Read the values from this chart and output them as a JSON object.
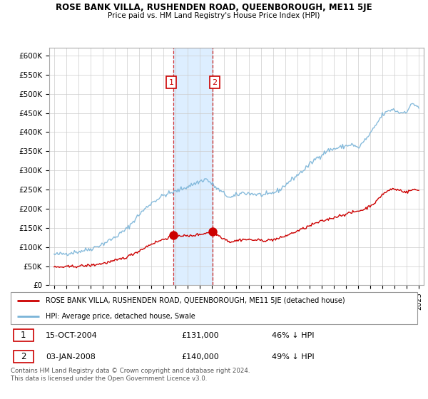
{
  "title": "ROSE BANK VILLA, RUSHENDEN ROAD, QUEENBOROUGH, ME11 5JE",
  "subtitle": "Price paid vs. HM Land Registry's House Price Index (HPI)",
  "hpi_color": "#7ab4d8",
  "price_color": "#cc0000",
  "highlight_color": "#ddeeff",
  "ylim": [
    0,
    620000
  ],
  "yticks": [
    0,
    50000,
    100000,
    150000,
    200000,
    250000,
    300000,
    350000,
    400000,
    450000,
    500000,
    550000,
    600000
  ],
  "ytick_labels": [
    "£0",
    "£50K",
    "£100K",
    "£150K",
    "£200K",
    "£250K",
    "£300K",
    "£350K",
    "£400K",
    "£450K",
    "£500K",
    "£550K",
    "£600K"
  ],
  "sale1_date_num": 2004.79,
  "sale1_price": 131000,
  "sale2_date_num": 2008.01,
  "sale2_price": 140000,
  "legend_line1": "ROSE BANK VILLA, RUSHENDEN ROAD, QUEENBOROUGH, ME11 5JE (detached house)",
  "legend_line2": "HPI: Average price, detached house, Swale",
  "table_row1": [
    "1",
    "15-OCT-2004",
    "£131,000",
    "46% ↓ HPI"
  ],
  "table_row2": [
    "2",
    "03-JAN-2008",
    "£140,000",
    "49% ↓ HPI"
  ],
  "footnote": "Contains HM Land Registry data © Crown copyright and database right 2024.\nThis data is licensed under the Open Government Licence v3.0."
}
